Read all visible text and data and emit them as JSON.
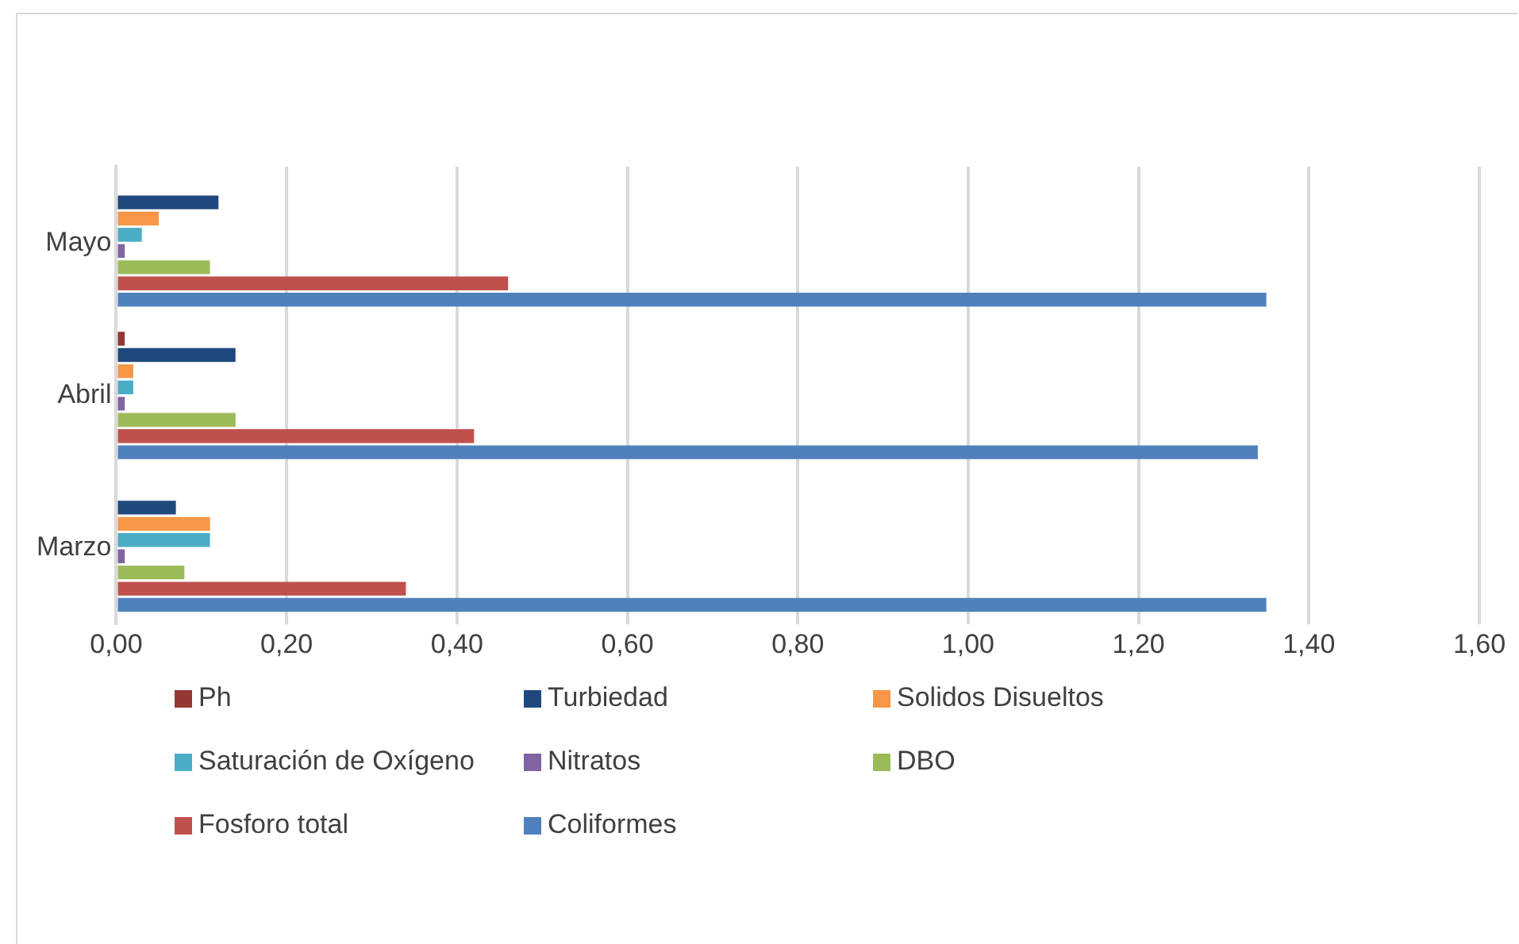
{
  "chart_data": {
    "type": "bar",
    "orientation": "horizontal",
    "categories": [
      "Mayo",
      "Abril",
      "Marzo"
    ],
    "series": [
      {
        "name": "Ph",
        "color": "#953735",
        "values": [
          0,
          0.01,
          0
        ]
      },
      {
        "name": "Turbiedad",
        "color": "#1f497d",
        "values": [
          0.12,
          0.14,
          0.07
        ]
      },
      {
        "name": "Solidos Disueltos",
        "color": "#f79646",
        "values": [
          0.05,
          0.02,
          0.11
        ]
      },
      {
        "name": "Saturación de Oxígeno",
        "color": "#4bacc6",
        "values": [
          0.03,
          0.02,
          0.11
        ]
      },
      {
        "name": "Nitratos",
        "color": "#8064a2",
        "values": [
          0.01,
          0.01,
          0.01
        ]
      },
      {
        "name": "DBO",
        "color": "#9bbb59",
        "values": [
          0.11,
          0.14,
          0.08
        ]
      },
      {
        "name": "Fosforo total",
        "color": "#c0504d",
        "values": [
          0.46,
          0.42,
          0.34
        ]
      },
      {
        "name": "Coliformes",
        "color": "#4f81bd",
        "values": [
          1.35,
          1.34,
          1.35
        ]
      }
    ],
    "xlim": [
      0,
      1.6
    ],
    "xticks": [
      {
        "value": 0,
        "label": "0,00"
      },
      {
        "value": 0.2,
        "label": "0,20"
      },
      {
        "value": 0.4,
        "label": "0,40"
      },
      {
        "value": 0.6,
        "label": "0,60"
      },
      {
        "value": 0.8,
        "label": "0,80"
      },
      {
        "value": 1,
        "label": "1,00"
      },
      {
        "value": 1.2,
        "label": "1,20"
      },
      {
        "value": 1.4,
        "label": "1,40"
      },
      {
        "value": 1.6,
        "label": "1,60"
      }
    ],
    "grid": "x",
    "legend": "bottom"
  }
}
